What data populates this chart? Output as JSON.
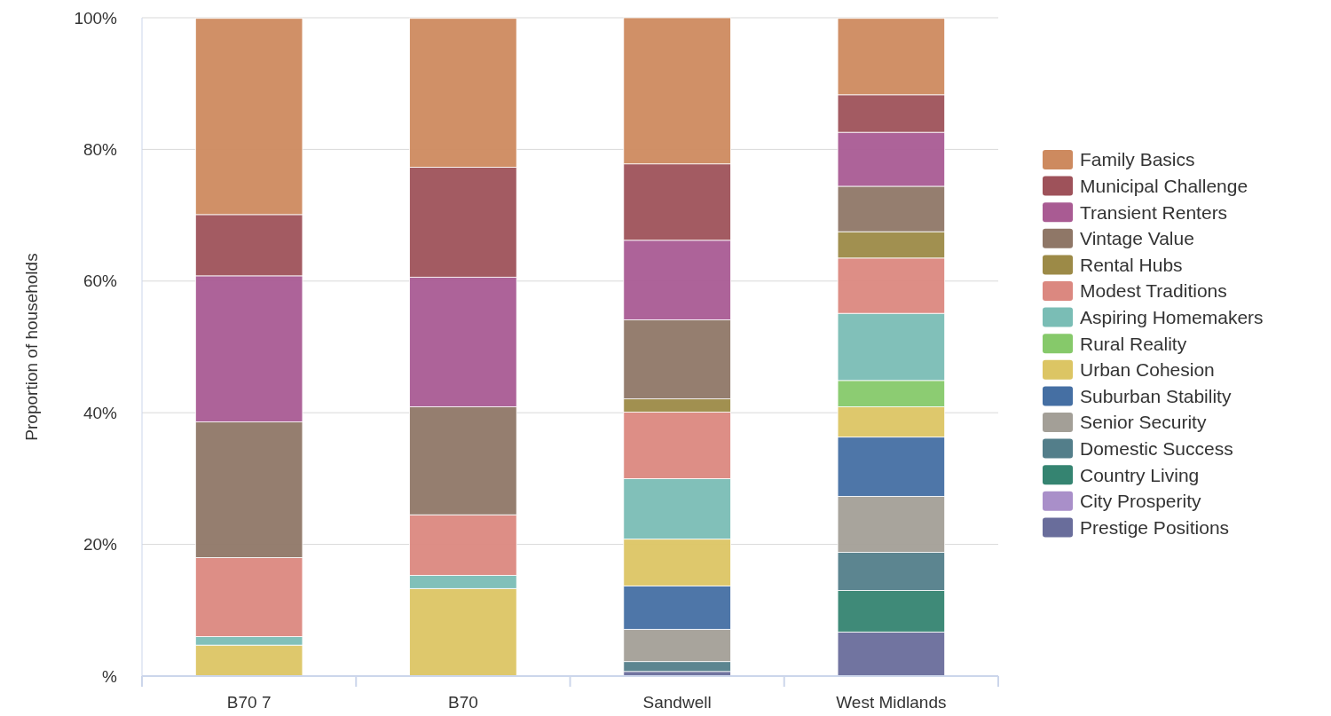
{
  "chart_data": {
    "type": "bar",
    "stacked": true,
    "ylabel": "Proportion of households",
    "categories": [
      "B70 7",
      "B70",
      "Sandwell",
      "West Midlands"
    ],
    "ylim": [
      0,
      100
    ],
    "yticks": [
      {
        "value": 0,
        "label": "%"
      },
      {
        "value": 20,
        "label": "20%"
      },
      {
        "value": 40,
        "label": "40%"
      },
      {
        "value": 60,
        "label": "60%"
      },
      {
        "value": 80,
        "label": "80%"
      },
      {
        "value": 100,
        "label": "100%"
      }
    ],
    "grid": "y",
    "legend": "right",
    "series": [
      {
        "name": "Prestige Positions",
        "color": "#696d9b",
        "values": [
          0,
          0,
          0.7,
          6.7
        ]
      },
      {
        "name": "City Prosperity",
        "color": "#a98fc9",
        "values": [
          0,
          0,
          0,
          0
        ]
      },
      {
        "name": "Country Living",
        "color": "#358471",
        "values": [
          0,
          0,
          0,
          6.3
        ]
      },
      {
        "name": "Domestic Success",
        "color": "#537e8a",
        "values": [
          0,
          0,
          1.5,
          5.8
        ]
      },
      {
        "name": "Senior Security",
        "color": "#a39f97",
        "values": [
          0,
          0,
          4.9,
          8.5
        ]
      },
      {
        "name": "Suburban Stability",
        "color": "#456fa3",
        "values": [
          0,
          0,
          6.6,
          9.0
        ]
      },
      {
        "name": "Urban Cohesion",
        "color": "#dcc564",
        "values": [
          4.7,
          13.3,
          7.1,
          4.6
        ]
      },
      {
        "name": "Rural Reality",
        "color": "#86c96a",
        "values": [
          0,
          0,
          0,
          4.0
        ]
      },
      {
        "name": "Aspiring Homemakers",
        "color": "#7abdb5",
        "values": [
          1.3,
          2.0,
          9.2,
          10.2
        ]
      },
      {
        "name": "Modest Traditions",
        "color": "#db8880",
        "values": [
          12.0,
          9.2,
          10.1,
          8.4
        ]
      },
      {
        "name": "Rental Hubs",
        "color": "#9c8a47",
        "values": [
          0,
          0,
          2.0,
          4.0
        ]
      },
      {
        "name": "Vintage Value",
        "color": "#8f7767",
        "values": [
          20.6,
          16.4,
          12.0,
          6.9
        ]
      },
      {
        "name": "Transient Renters",
        "color": "#a95b93",
        "values": [
          22.2,
          19.7,
          12.1,
          8.2
        ]
      },
      {
        "name": "Municipal Challenge",
        "color": "#9e525a",
        "values": [
          9.3,
          16.7,
          11.6,
          5.7
        ]
      },
      {
        "name": "Family Basics",
        "color": "#cd8a5f",
        "values": [
          29.8,
          22.6,
          22.2,
          11.6
        ]
      }
    ]
  }
}
